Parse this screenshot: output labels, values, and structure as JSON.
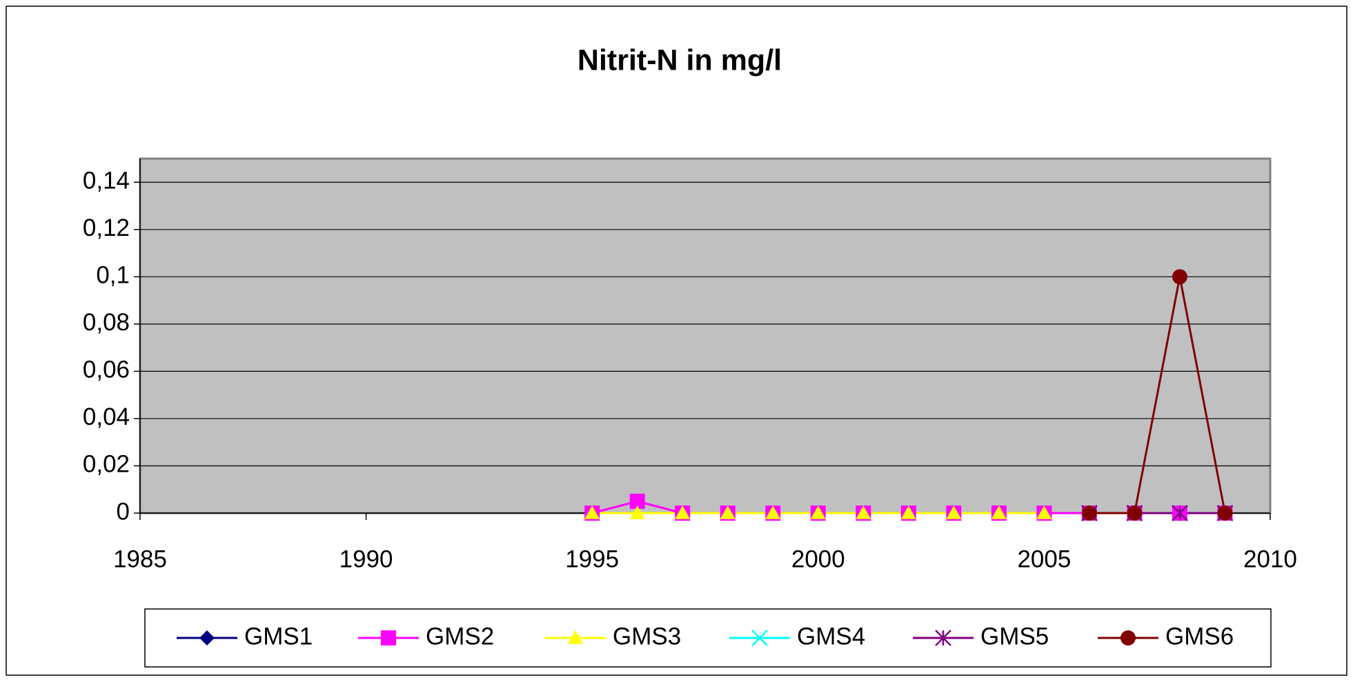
{
  "chart_data": {
    "type": "line",
    "title": "Nitrit-N in mg/l",
    "xlim": [
      1985,
      2010
    ],
    "xticks": [
      1985,
      1990,
      1995,
      2000,
      2005,
      2010
    ],
    "ylim": [
      0,
      0.15
    ],
    "yticks": [
      0,
      {
        "value": 0.02,
        "label": "0,02"
      },
      {
        "value": 0.04,
        "label": "0,04"
      },
      {
        "value": 0.06,
        "label": "0,06"
      },
      {
        "value": 0.08,
        "label": "0,08"
      },
      {
        "value": 0.1,
        "label": "0,1"
      },
      {
        "value": 0.12,
        "label": "0,12"
      },
      {
        "value": 0.14,
        "label": "0,14"
      }
    ],
    "grid": true,
    "legend": "bottom",
    "series": [
      {
        "name": "GMS1",
        "color": "#000080",
        "marker": "diamond",
        "x": [
          2006,
          2007,
          2008,
          2009
        ],
        "values": [
          0,
          0,
          0,
          0
        ]
      },
      {
        "name": "GMS2",
        "color": "#ff00ff",
        "marker": "square",
        "x": [
          1995,
          1996,
          1997,
          1998,
          1999,
          2000,
          2001,
          2002,
          2003,
          2004,
          2005,
          2006,
          2007,
          2008,
          2009
        ],
        "values": [
          0,
          0.005,
          0,
          0,
          0,
          0,
          0,
          0,
          0,
          0,
          0,
          0,
          0,
          0,
          0
        ]
      },
      {
        "name": "GMS3",
        "color": "#ffff00",
        "marker": "triangle",
        "x": [
          1995,
          1996,
          1997,
          1998,
          1999,
          2000,
          2001,
          2002,
          2003,
          2004,
          2005
        ],
        "values": [
          0,
          0,
          0,
          0,
          0,
          0,
          0,
          0,
          0,
          0,
          0
        ]
      },
      {
        "name": "GMS4",
        "color": "#00ffff",
        "marker": "x",
        "x": [
          2006,
          2007,
          2008,
          2009
        ],
        "values": [
          0,
          0,
          0,
          0
        ]
      },
      {
        "name": "GMS5",
        "color": "#800080",
        "marker": "star",
        "x": [
          2006,
          2007,
          2008,
          2009
        ],
        "values": [
          0,
          0,
          0,
          0
        ]
      },
      {
        "name": "GMS6",
        "color": "#800000",
        "marker": "circle",
        "x": [
          2006,
          2007,
          2008,
          2009
        ],
        "values": [
          0,
          0,
          0.1,
          0
        ]
      }
    ]
  }
}
